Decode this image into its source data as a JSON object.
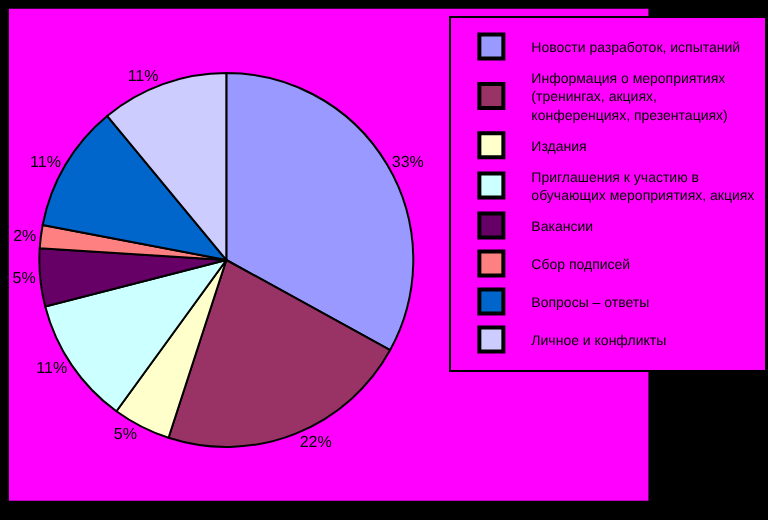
{
  "chart_data": {
    "type": "pie",
    "categories": [
      "Новости разработок, испытаний",
      "Информация о мероприятиях (тренингах, акциях, конференциях, презентациях)",
      "Издания",
      "Приглашения к участию в обучающих мероприятиях, акциях",
      "Вакансии",
      "Сбор подписей",
      "Вопросы – ответы",
      "Личное и конфликты"
    ],
    "values": [
      33,
      22,
      5,
      11,
      5,
      2,
      11,
      11
    ],
    "value_labels": [
      "33%",
      "22%",
      "5%",
      "11%",
      "5%",
      "2%",
      "11%",
      "11%"
    ],
    "colors": [
      "#9999ff",
      "#993366",
      "#ffffcc",
      "#ccffff",
      "#660066",
      "#ff8080",
      "#0066cc",
      "#ccccff"
    ],
    "legend": "right"
  }
}
